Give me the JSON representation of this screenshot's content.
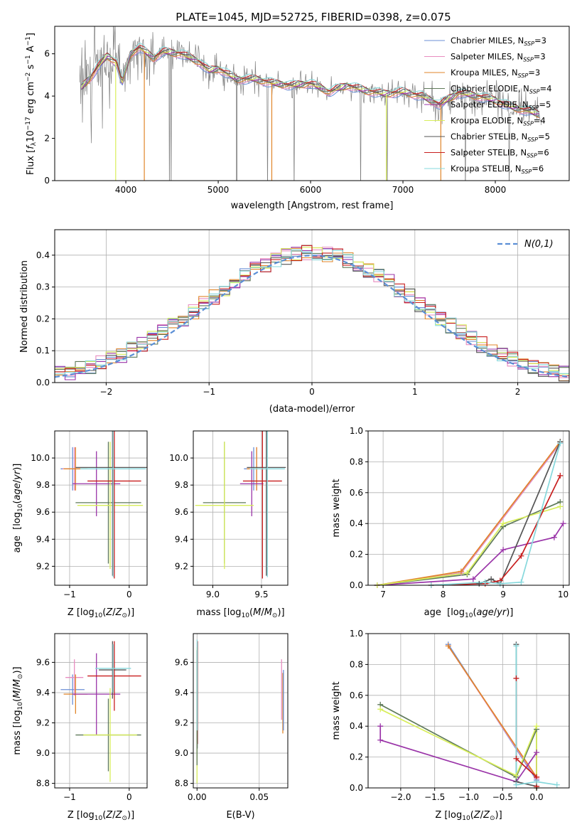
{
  "title": "PLATE=1045, MJD=52725, FIBERID=0398, z=0.075",
  "colors": {
    "Chabrier MILES": "#6b8fd6",
    "Salpeter MILES": "#e88cc0",
    "Kroupa MILES": "#e0852a",
    "Chabrier ELODIE": "#5f7a5a",
    "Salpeter ELODIE": "#9a34a8",
    "Kroupa ELODIE": "#d8ee5a",
    "Chabrier STELIB": "#555555",
    "Salpeter STELIB": "#c81e1e",
    "Kroupa STELIB": "#86d8dc",
    "data": "#808080",
    "normal": "#5b8fd6"
  },
  "chart_data": [
    {
      "type": "line",
      "id": "spectrum",
      "xlabel": "wavelength [Angstrom, rest frame]",
      "ylabel": "Flux [f_λ 10^-17 erg cm^-2 s^-1 A^-1]",
      "xlim": [
        3230,
        8800
      ],
      "ylim": [
        0,
        7.3
      ],
      "xticks": [
        4000,
        5000,
        6000,
        7000,
        8000
      ],
      "yticks": [
        0,
        2,
        4,
        6
      ],
      "legend_position": "top-right",
      "legend": [
        {
          "name": "Chabrier MILES",
          "nssp": "3"
        },
        {
          "name": "Salpeter MILES",
          "nssp": "3"
        },
        {
          "name": "Kroupa MILES",
          "nssp": "3"
        },
        {
          "name": "Chabrier ELODIE",
          "nssp": "4"
        },
        {
          "name": "Salpeter ELODIE",
          "nssp": "5"
        },
        {
          "name": "Kroupa ELODIE",
          "nssp": "4"
        },
        {
          "name": "Chabrier STELIB",
          "nssp": "5"
        },
        {
          "name": "Salpeter STELIB",
          "nssp": "6"
        },
        {
          "name": "Kroupa STELIB",
          "nssp": "6"
        }
      ],
      "continuum": [
        [
          3500,
          4.3
        ],
        [
          3620,
          4.9
        ],
        [
          3700,
          5.4
        ],
        [
          3800,
          5.9
        ],
        [
          3900,
          5.6
        ],
        [
          3960,
          4.6
        ],
        [
          4050,
          6.0
        ],
        [
          4150,
          6.3
        ],
        [
          4300,
          5.8
        ],
        [
          4400,
          6.1
        ],
        [
          4600,
          6.0
        ],
        [
          4800,
          5.6
        ],
        [
          4900,
          5.2
        ],
        [
          5000,
          5.3
        ],
        [
          5200,
          4.8
        ],
        [
          5400,
          4.8
        ],
        [
          5600,
          4.6
        ],
        [
          5800,
          4.5
        ],
        [
          6000,
          4.6
        ],
        [
          6200,
          4.2
        ],
        [
          6400,
          4.5
        ],
        [
          6600,
          4.25
        ],
        [
          6800,
          4.1
        ],
        [
          7000,
          4.2
        ],
        [
          7200,
          4.0
        ],
        [
          7400,
          3.6
        ],
        [
          7600,
          4.15
        ],
        [
          7800,
          4.0
        ],
        [
          8000,
          3.8
        ],
        [
          8200,
          3.45
        ],
        [
          8350,
          3.3
        ],
        [
          8500,
          3.1
        ]
      ]
    },
    {
      "type": "line",
      "id": "residual-histogram",
      "xlabel": "(data-model)/error",
      "ylabel": "Normed distribution",
      "xlim": [
        -2.5,
        2.5
      ],
      "ylim": [
        0,
        0.48
      ],
      "xticks": [
        -2,
        -1,
        0,
        1,
        2
      ],
      "yticks": [
        0.0,
        0.1,
        0.2,
        0.3,
        0.4
      ],
      "legend": "N(0,1)",
      "bin_edges": [
        -2.5,
        -2.4,
        -2.3,
        -2.2,
        -2.1,
        -2.0,
        -1.9,
        -1.8,
        -1.7,
        -1.6,
        -1.5,
        -1.4,
        -1.3,
        -1.2,
        -1.1,
        -1.0,
        -0.9,
        -0.8,
        -0.7,
        -0.6,
        -0.5,
        -0.4,
        -0.3,
        -0.2,
        -0.1,
        0.0,
        0.1,
        0.2,
        0.3,
        0.4,
        0.5,
        0.6,
        0.7,
        0.8,
        0.9,
        1.0,
        1.1,
        1.2,
        1.3,
        1.4,
        1.5,
        1.6,
        1.7,
        1.8,
        1.9,
        2.0,
        2.1,
        2.2,
        2.3,
        2.4,
        2.5
      ]
    },
    {
      "type": "scatter",
      "id": "age-vs-Z",
      "xlabel": "Z [log10(Z/Z⊙)]",
      "ylabel": "age [log10(age/yr)]",
      "xlim": [
        -1.25,
        0.3
      ],
      "ylim": [
        9.06,
        10.2
      ],
      "xticks": [
        -1,
        0
      ],
      "xticklabels": [
        "−1",
        "0"
      ],
      "yticks": [
        9.2,
        9.4,
        9.6,
        9.8,
        10.0
      ],
      "errorbars": [
        {
          "s": "Chabrier MILES",
          "x": -0.95,
          "y": 9.92,
          "xe": 0.2,
          "ye": 0.16
        },
        {
          "s": "Salpeter MILES",
          "x": -0.92,
          "y": 9.92,
          "xe": 0.2,
          "ye": 0.16
        },
        {
          "s": "Kroupa MILES",
          "x": -0.9,
          "y": 9.92,
          "xe": 0.2,
          "ye": 0.16
        },
        {
          "s": "Chabrier ELODIE",
          "x": -0.35,
          "y": 9.67,
          "xe": 0.55,
          "ye": 0.45
        },
        {
          "s": "Salpeter ELODIE",
          "x": -0.55,
          "y": 9.81,
          "xe": 0.4,
          "ye": 0.24
        },
        {
          "s": "Kroupa ELODIE",
          "x": -0.32,
          "y": 9.65,
          "xe": 0.55,
          "ye": 0.47
        },
        {
          "s": "Chabrier STELIB",
          "x": -0.28,
          "y": 9.93,
          "xe": 0.62,
          "ye": 0.8
        },
        {
          "s": "Salpeter STELIB",
          "x": -0.25,
          "y": 9.83,
          "xe": 0.45,
          "ye": 0.72
        },
        {
          "s": "Kroupa STELIB",
          "x": -0.27,
          "y": 9.92,
          "xe": 0.55,
          "ye": 0.8
        }
      ]
    },
    {
      "type": "scatter",
      "id": "age-vs-mass",
      "xlabel": "mass [log10(M/M⊙)]",
      "xlim": [
        8.8,
        9.77
      ],
      "ylim": [
        9.06,
        10.2
      ],
      "xticks": [
        9.0,
        9.5
      ],
      "yticks": [
        9.2,
        9.4,
        9.6,
        9.8,
        10.0
      ],
      "errorbars": [
        {
          "s": "Chabrier MILES",
          "x": 9.42,
          "y": 9.92,
          "xe": 0.1,
          "ye": 0.16
        },
        {
          "s": "Salpeter MILES",
          "x": 9.45,
          "y": 9.92,
          "xe": 0.1,
          "ye": 0.16
        },
        {
          "s": "Kroupa MILES",
          "x": 9.45,
          "y": 9.92,
          "xe": 0.1,
          "ye": 0.16
        },
        {
          "s": "Chabrier ELODIE",
          "x": 9.12,
          "y": 9.67,
          "xe": 0.22,
          "ye": 0.45
        },
        {
          "s": "Salpeter ELODIE",
          "x": 9.4,
          "y": 9.81,
          "xe": 0.12,
          "ye": 0.24
        },
        {
          "s": "Kroupa ELODIE",
          "x": 9.12,
          "y": 9.65,
          "xe": 0.3,
          "ye": 0.47
        },
        {
          "s": "Chabrier STELIB",
          "x": 9.55,
          "y": 9.93,
          "xe": 0.2,
          "ye": 0.8
        },
        {
          "s": "Salpeter STELIB",
          "x": 9.51,
          "y": 9.83,
          "xe": 0.2,
          "ye": 0.72
        },
        {
          "s": "Kroupa STELIB",
          "x": 9.56,
          "y": 9.92,
          "xe": 0.18,
          "ye": 0.8
        }
      ]
    },
    {
      "type": "line",
      "id": "weight-vs-age",
      "xlabel": "age [log10(age/yr)]",
      "ylabel": "mass weight",
      "xlim": [
        6.75,
        10.1
      ],
      "ylim": [
        0,
        1.0
      ],
      "xticks": [
        7,
        8,
        9,
        10
      ],
      "yticks": [
        0.0,
        0.2,
        0.4,
        0.6,
        0.8,
        1.0
      ],
      "series": [
        {
          "s": "Chabrier MILES",
          "x": [
            6.9,
            8.3,
            9.95
          ],
          "y": [
            0.0,
            0.08,
            0.92
          ]
        },
        {
          "s": "Salpeter MILES",
          "x": [
            6.9,
            8.3,
            9.95
          ],
          "y": [
            0.0,
            0.08,
            0.92
          ]
        },
        {
          "s": "Kroupa MILES",
          "x": [
            6.9,
            8.3,
            9.95
          ],
          "y": [
            0.0,
            0.09,
            0.93
          ]
        },
        {
          "s": "Chabrier ELODIE",
          "x": [
            6.9,
            8.4,
            9.0,
            9.95
          ],
          "y": [
            0.0,
            0.07,
            0.38,
            0.54
          ]
        },
        {
          "s": "Salpeter ELODIE",
          "x": [
            6.9,
            8.5,
            9.0,
            9.85,
            10.0
          ],
          "y": [
            0.0,
            0.04,
            0.23,
            0.31,
            0.4
          ]
        },
        {
          "s": "Kroupa ELODIE",
          "x": [
            6.9,
            8.4,
            9.0,
            9.95
          ],
          "y": [
            0.0,
            0.08,
            0.4,
            0.51
          ]
        },
        {
          "s": "Chabrier STELIB",
          "x": [
            7.8,
            8.6,
            8.8,
            8.95,
            9.95
          ],
          "y": [
            0.0,
            0.01,
            0.04,
            0.01,
            0.93
          ]
        },
        {
          "s": "Salpeter STELIB",
          "x": [
            7.8,
            8.7,
            8.95,
            9.3,
            9.95
          ],
          "y": [
            0.0,
            0.01,
            0.03,
            0.19,
            0.71
          ]
        },
        {
          "s": "Kroupa STELIB",
          "x": [
            7.8,
            8.7,
            8.95,
            9.3,
            9.95
          ],
          "y": [
            0.0,
            0.02,
            0.01,
            0.02,
            0.92
          ]
        }
      ]
    },
    {
      "type": "scatter",
      "id": "mass-vs-Z",
      "xlabel": "Z [log10(Z/Z⊙)]",
      "ylabel": "mass [log10(M/M⊙)]",
      "xlim": [
        -1.25,
        0.3
      ],
      "ylim": [
        8.77,
        9.79
      ],
      "xticks": [
        -1,
        0
      ],
      "xticklabels": [
        "−1",
        "0"
      ],
      "yticks": [
        8.8,
        9.0,
        9.2,
        9.4,
        9.6
      ],
      "errorbars": [
        {
          "s": "Chabrier MILES",
          "x": -0.95,
          "y": 9.42,
          "xe": 0.2,
          "ye": 0.1
        },
        {
          "s": "Salpeter MILES",
          "x": -0.92,
          "y": 9.5,
          "xe": 0.15,
          "ye": 0.12
        },
        {
          "s": "Kroupa MILES",
          "x": -0.9,
          "y": 9.39,
          "xe": 0.2,
          "ye": 0.13
        },
        {
          "s": "Chabrier ELODIE",
          "x": -0.35,
          "y": 9.12,
          "xe": 0.55,
          "ye": 0.24
        },
        {
          "s": "Salpeter ELODIE",
          "x": -0.55,
          "y": 9.39,
          "xe": 0.4,
          "ye": 0.27
        },
        {
          "s": "Kroupa ELODIE",
          "x": -0.32,
          "y": 9.12,
          "xe": 0.45,
          "ye": 0.31
        },
        {
          "s": "Chabrier STELIB",
          "x": -0.28,
          "y": 9.55,
          "xe": 0.23,
          "ye": 0.19
        },
        {
          "s": "Salpeter STELIB",
          "x": -0.25,
          "y": 9.51,
          "xe": 0.45,
          "ye": 0.23
        },
        {
          "s": "Kroupa STELIB",
          "x": -0.27,
          "y": 9.56,
          "xe": 0.3,
          "ye": 0.16
        }
      ]
    },
    {
      "type": "scatter",
      "id": "mass-vs-ebv",
      "xlabel": "E(B-V)",
      "xlim": [
        -0.003,
        0.073
      ],
      "ylim": [
        8.77,
        9.79
      ],
      "xticks": [
        0.0,
        0.05
      ],
      "xticklabels": [
        "0.00",
        "0.05"
      ],
      "yticks": [
        8.8,
        9.0,
        9.2,
        9.4,
        9.6
      ],
      "errorbars": [
        {
          "s": "Salpeter MILES",
          "x": 0.068,
          "y": 9.42,
          "xe": 0,
          "ye": 0.2
        },
        {
          "s": "Kroupa MILES",
          "x": 0.069,
          "y": 9.33,
          "xe": 0,
          "ye": 0.2
        },
        {
          "s": "Chabrier MILES",
          "x": 0.0695,
          "y": 9.35,
          "xe": 0,
          "ye": 0.2
        },
        {
          "s": "Kroupa ELODIE",
          "x": 0.0,
          "y": 9.25,
          "xe": 0,
          "ye": 0.45
        },
        {
          "s": "Salpeter STELIB",
          "x": 0.0004,
          "y": 9.4,
          "xe": 0,
          "ye": 0.34
        },
        {
          "s": "Chabrier STELIB",
          "x": 0.0002,
          "y": 9.38,
          "xe": 0,
          "ye": 0.35
        },
        {
          "s": "Chabrier ELODIE",
          "x": 0.0,
          "y": 9.3,
          "xe": 0,
          "ye": 0.38
        },
        {
          "s": "Kroupa STELIB",
          "x": 0.0001,
          "y": 9.45,
          "xe": 0,
          "ye": 0.3
        }
      ]
    },
    {
      "type": "line",
      "id": "weight-vs-Z",
      "xlabel": "Z [log10(Z/Z⊙)]",
      "ylabel": "mass weight",
      "xlim": [
        -2.48,
        0.48
      ],
      "ylim": [
        0,
        1.0
      ],
      "xticks": [
        -2.0,
        -1.5,
        -1.0,
        -0.5,
        0.0
      ],
      "xticklabels": [
        "−2.0",
        "−1.5",
        "−1.0",
        "−0.5",
        "0.0"
      ],
      "yticks": [
        0.0,
        0.2,
        0.4,
        0.6,
        0.8,
        1.0
      ],
      "series": [
        {
          "s": "Chabrier MILES",
          "x": [
            -1.3,
            0.0
          ],
          "y": [
            0.93,
            0.05
          ]
        },
        {
          "s": "Salpeter MILES",
          "x": [
            -1.3,
            0.0
          ],
          "y": [
            0.92,
            0.06
          ]
        },
        {
          "s": "Kroupa MILES",
          "x": [
            -1.3,
            0.0
          ],
          "y": [
            0.92,
            0.07
          ]
        },
        {
          "s": "Chabrier ELODIE",
          "x": [
            -2.3,
            -0.3,
            0.0,
            0.0
          ],
          "y": [
            0.54,
            0.07,
            0.38,
            0.0
          ]
        },
        {
          "s": "Salpeter ELODIE",
          "x": [
            -2.3,
            -2.3,
            -0.3,
            0.0,
            0.0
          ],
          "y": [
            0.4,
            0.31,
            0.04,
            0.23,
            0.0
          ]
        },
        {
          "s": "Kroupa ELODIE",
          "x": [
            -2.3,
            -0.3,
            0.0,
            0.0
          ],
          "y": [
            0.51,
            0.08,
            0.4,
            0.0
          ]
        },
        {
          "s": "Chabrier STELIB",
          "x": [
            -0.3,
            -0.3,
            0.0
          ],
          "y": [
            0.93,
            0.04,
            0.01
          ]
        },
        {
          "s": "Salpeter STELIB",
          "x": [
            -0.3,
            -0.3,
            0.0,
            0.0
          ],
          "y": [
            0.71,
            0.19,
            0.07,
            0.01
          ]
        },
        {
          "s": "Kroupa STELIB",
          "x": [
            -0.3,
            -0.3,
            0.0,
            0.3
          ],
          "y": [
            0.92,
            0.02,
            0.04,
            0.02
          ]
        }
      ]
    }
  ]
}
